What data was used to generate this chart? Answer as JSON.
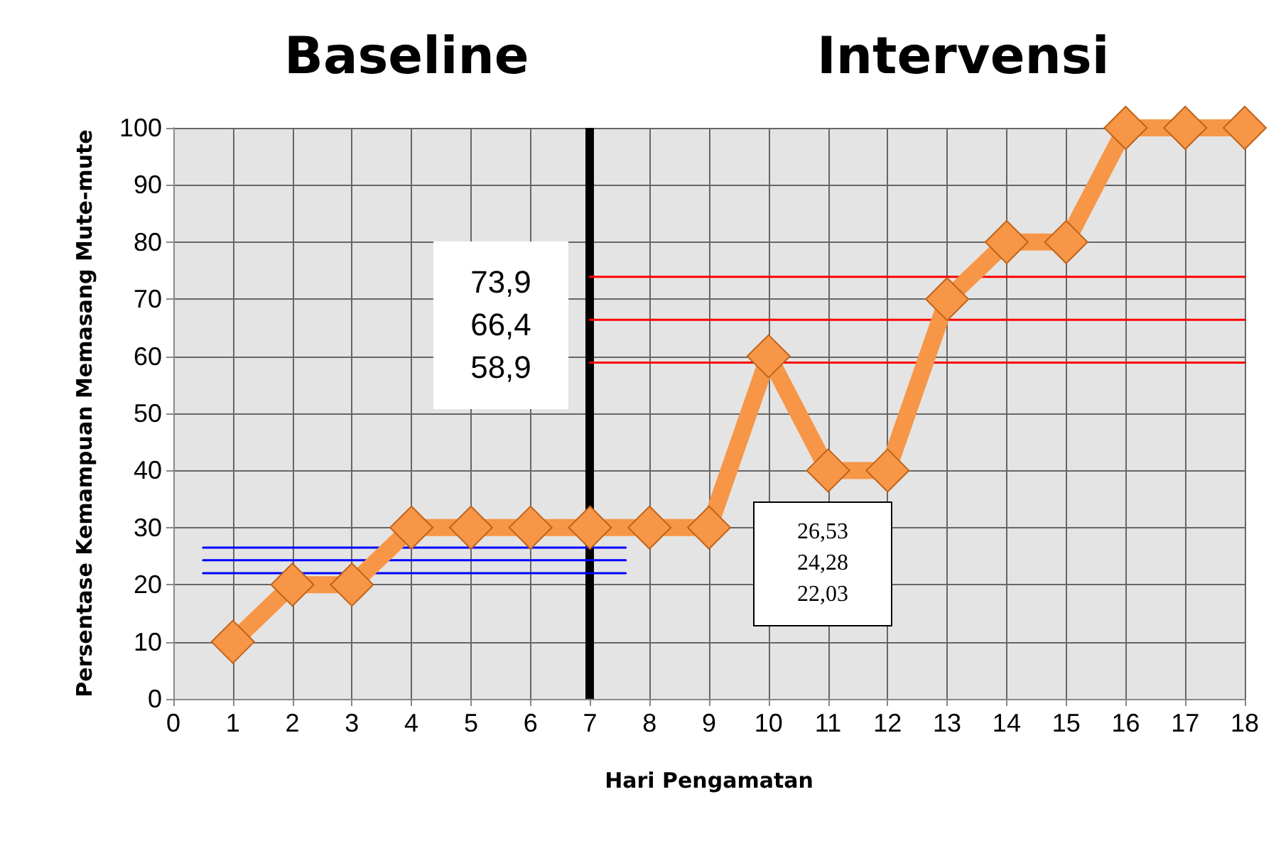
{
  "chart_data": {
    "type": "line",
    "xlabel": "Hari Pengamatan",
    "ylabel": "Persentase Kemampuan Memasang Mute-mute",
    "x": [
      1,
      2,
      3,
      4,
      5,
      6,
      7,
      8,
      9,
      10,
      11,
      12,
      13,
      14,
      15,
      16,
      17,
      18
    ],
    "series": [
      {
        "color": "#f79646",
        "values": [
          10,
          20,
          20,
          30,
          30,
          30,
          30,
          30,
          30,
          60,
          40,
          40,
          70,
          80,
          80,
          100,
          100,
          100
        ]
      },
      {
        "type": "line",
        "color": "#ff0000",
        "marker": "none",
        "x": [
          7,
          18
        ],
        "values": [
          73.9,
          73.9
        ]
      },
      {
        "type": "line",
        "color": "#ff0000",
        "marker": "none",
        "x": [
          7,
          18
        ],
        "values": [
          66.4,
          66.4
        ]
      },
      {
        "type": "line",
        "color": "#ff0000",
        "marker": "none",
        "x": [
          7,
          18
        ],
        "values": [
          58.9,
          58.9
        ]
      },
      {
        "type": "line",
        "color": "#0000ff",
        "marker": "none",
        "x": [
          0.5,
          7.6
        ],
        "values": [
          26.5,
          26.5
        ]
      },
      {
        "type": "line",
        "color": "#0000ff",
        "marker": "none",
        "x": [
          0.5,
          7.6
        ],
        "values": [
          24.3,
          24.3
        ]
      },
      {
        "type": "line",
        "color": "#0000ff",
        "marker": "none",
        "x": [
          0.5,
          7.6
        ],
        "values": [
          22.0,
          22.0
        ]
      }
    ],
    "ref_lines": [
      {
        "axis": "x",
        "value": 7,
        "color": "#000000"
      }
    ],
    "annotations": [
      "Baseline",
      "Intervensi",
      "73,9",
      "66,4",
      "58,9",
      "26,53",
      "24,28",
      "22,03"
    ],
    "xlim": [
      0,
      18
    ],
    "xticks": [
      0,
      1,
      2,
      3,
      4,
      5,
      6,
      7,
      8,
      9,
      10,
      11,
      12,
      13,
      14,
      15,
      16,
      17,
      18
    ],
    "ylim": [
      0,
      100
    ],
    "yticks": [
      0,
      10,
      20,
      30,
      40,
      50,
      60,
      70,
      80,
      90,
      100
    ],
    "grid": true,
    "marker": "diamond",
    "line_style": "solid"
  }
}
